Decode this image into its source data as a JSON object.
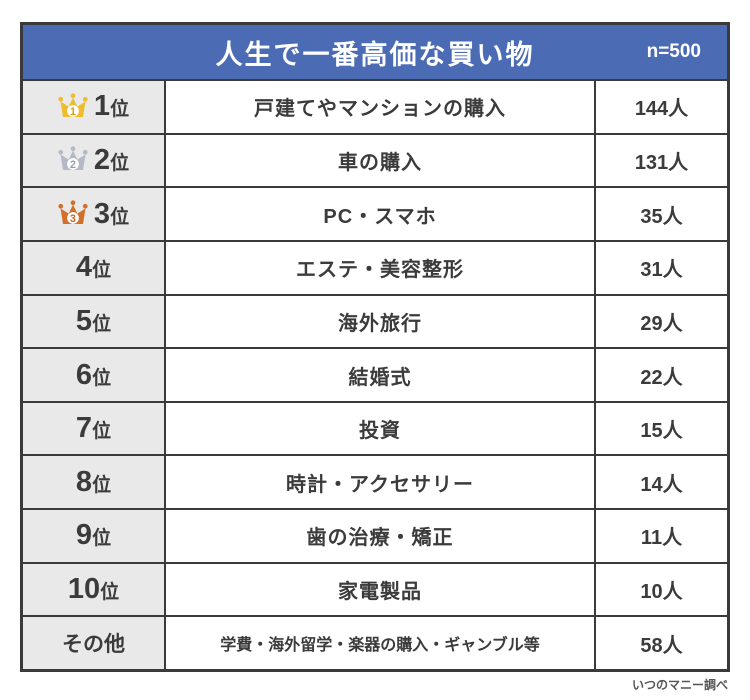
{
  "header": {
    "title": "人生で一番高価な買い物",
    "sample_size": "n=500"
  },
  "rows": [
    {
      "rank": "1",
      "suffix": "位",
      "medal": "gold",
      "item": "戸建てやマンションの購入",
      "count": "144人"
    },
    {
      "rank": "2",
      "suffix": "位",
      "medal": "silver",
      "item": "車の購入",
      "count": "131人"
    },
    {
      "rank": "3",
      "suffix": "位",
      "medal": "bronze",
      "item": "PC・スマホ",
      "count": "35人"
    },
    {
      "rank": "4",
      "suffix": "位",
      "medal": null,
      "item": "エステ・美容整形",
      "count": "31人"
    },
    {
      "rank": "5",
      "suffix": "位",
      "medal": null,
      "item": "海外旅行",
      "count": "29人"
    },
    {
      "rank": "6",
      "suffix": "位",
      "medal": null,
      "item": "結婚式",
      "count": "22人"
    },
    {
      "rank": "7",
      "suffix": "位",
      "medal": null,
      "item": "投資",
      "count": "15人"
    },
    {
      "rank": "8",
      "suffix": "位",
      "medal": null,
      "item": "時計・アクセサリー",
      "count": "14人"
    },
    {
      "rank": "9",
      "suffix": "位",
      "medal": null,
      "item": "歯の治療・矯正",
      "count": "11人"
    },
    {
      "rank": "10",
      "suffix": "位",
      "medal": null,
      "item": "家電製品",
      "count": "10人"
    },
    {
      "rank": "その他",
      "suffix": "",
      "medal": null,
      "other": true,
      "item_small": true,
      "item": "学費・海外留学・楽器の購入・ギャンブル等",
      "count": "58人"
    }
  ],
  "footer": {
    "credit": "いつのマニー調べ"
  },
  "colors": {
    "header_bg": "#4b6cb4",
    "border": "#3a3a3a",
    "rank_cell_bg": "#e9e9e9",
    "text": "#3b3b3b",
    "medals": {
      "gold": {
        "base": "#eebd2f",
        "number": "#d99c12"
      },
      "silver": {
        "base": "#b3bac6",
        "number": "#949dac"
      },
      "bronze": {
        "base": "#d26f2b",
        "number": "#c96524"
      }
    }
  }
}
